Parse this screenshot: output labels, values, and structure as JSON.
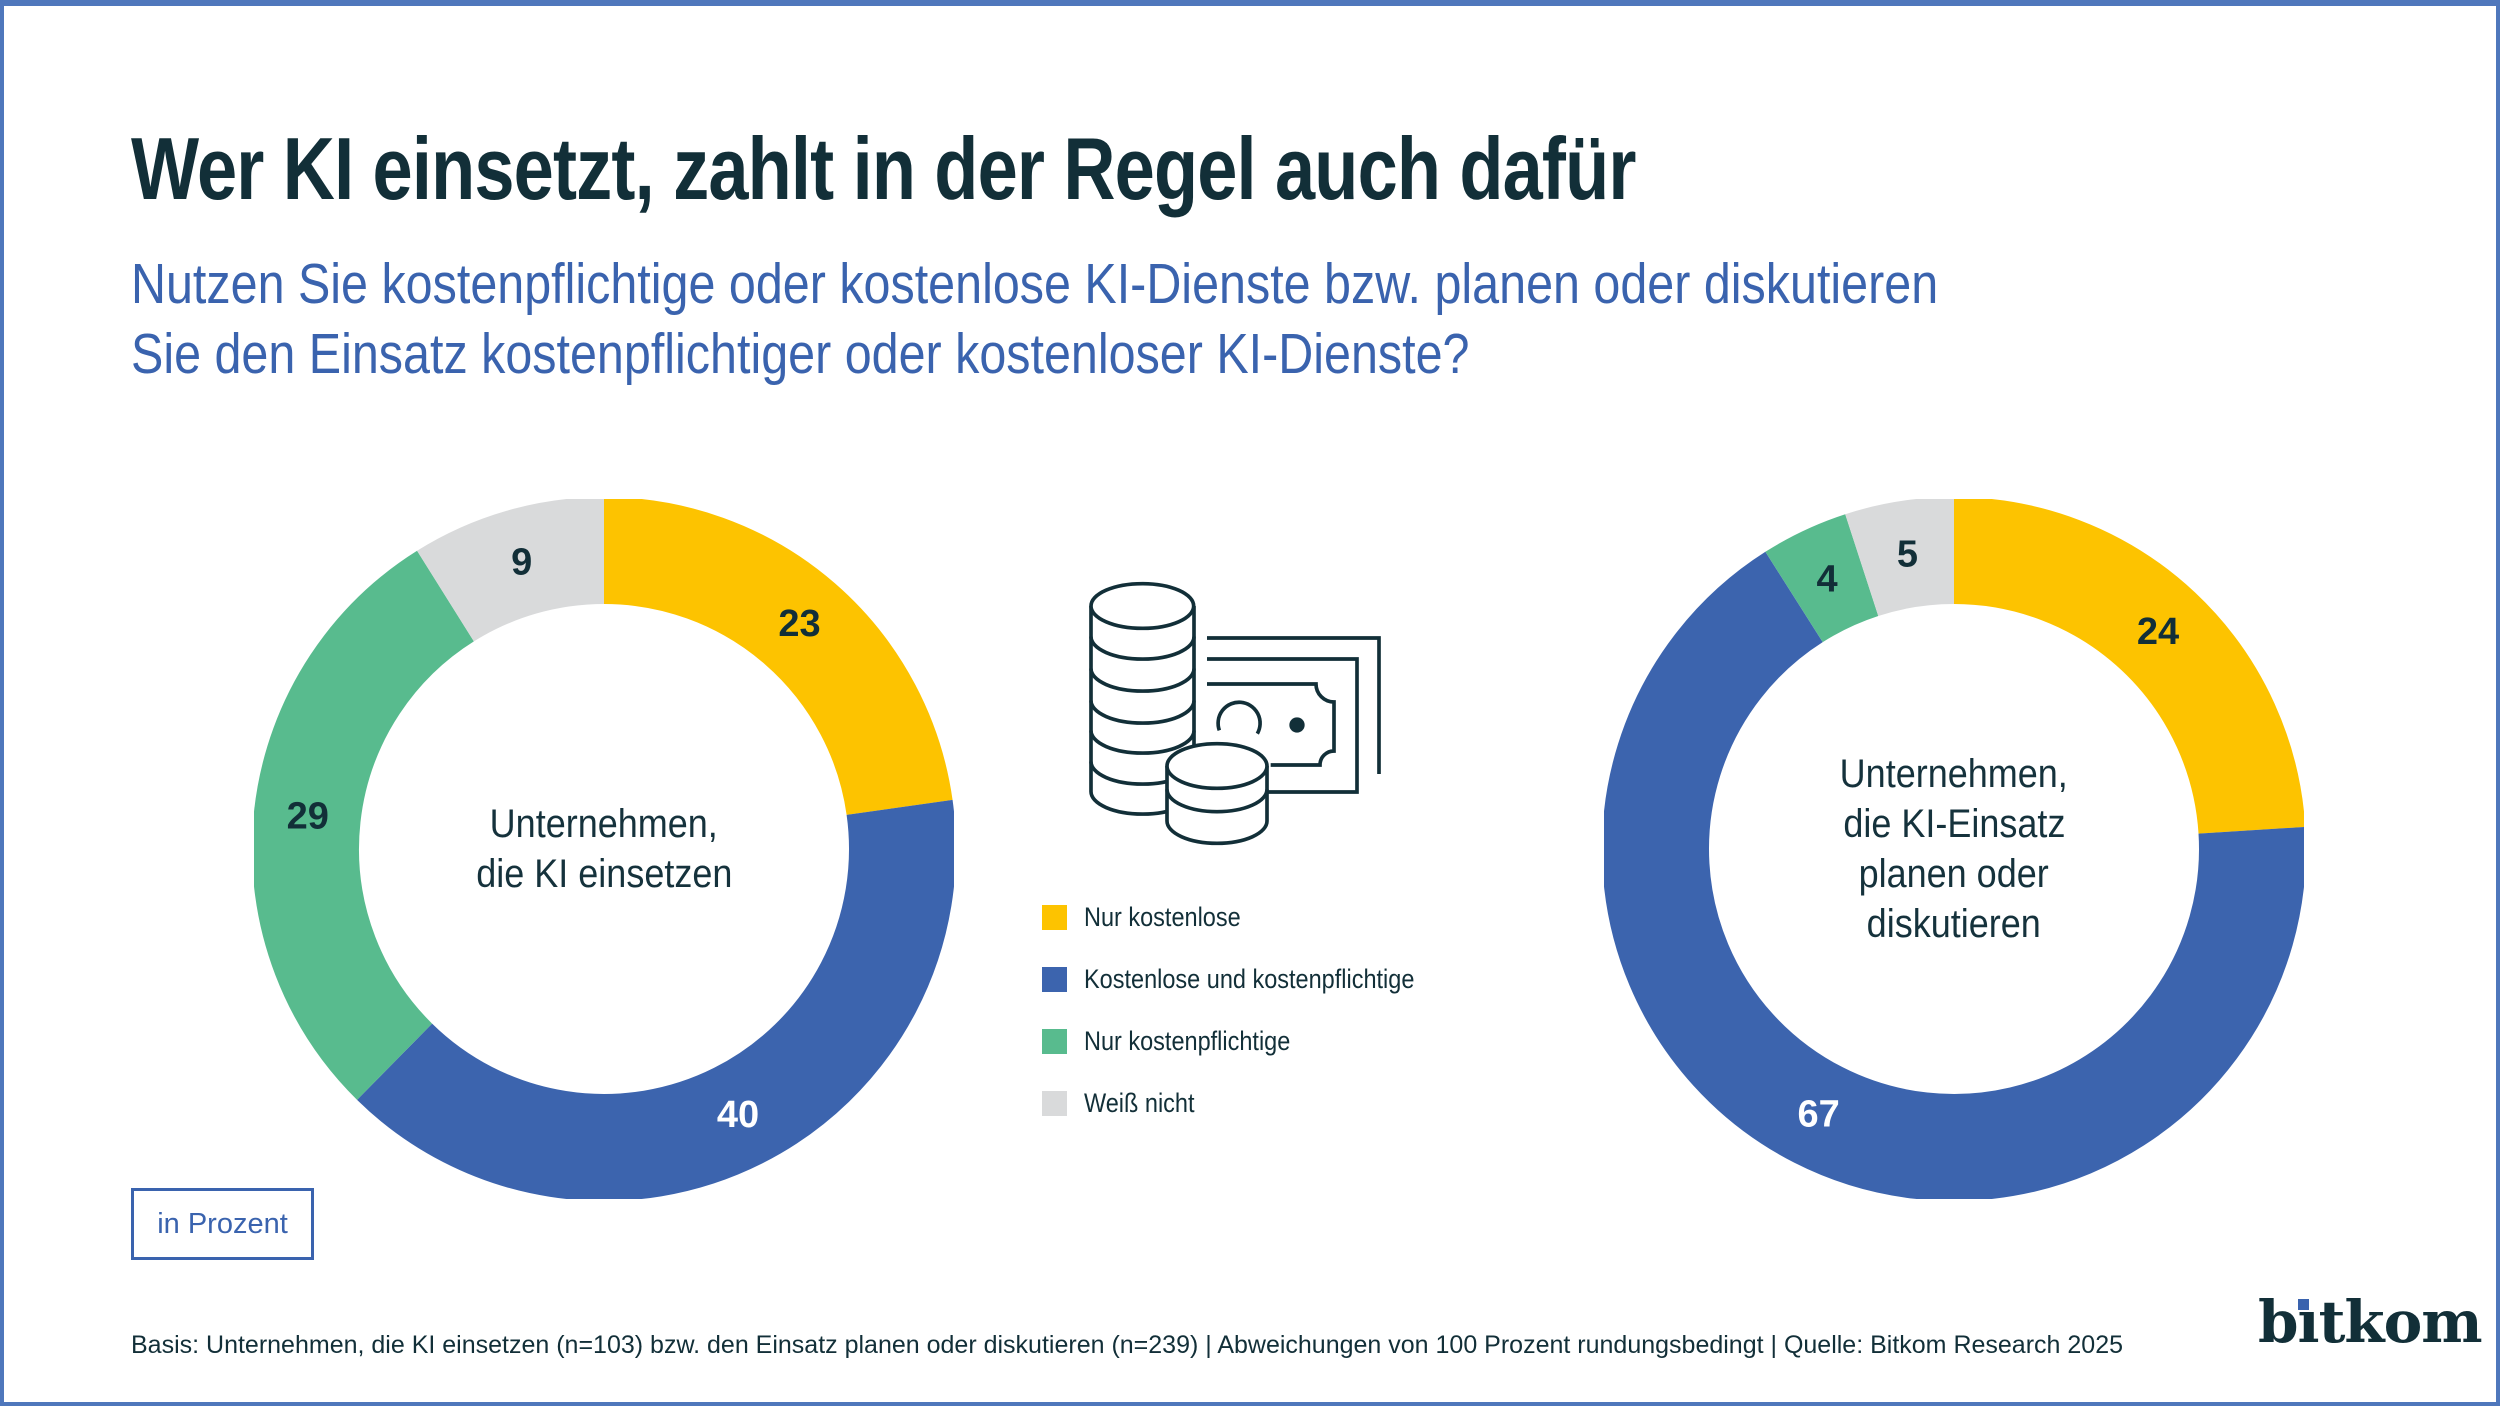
{
  "page": {
    "title": "Wer KI einsetzt, zahlt in der Regel auch dafür",
    "subtitle_lines": [
      "Nutzen Sie kostenpflichtige oder kostenlose KI-Dienste bzw. planen oder diskutieren",
      "Sie den Einsatz kostenpflichtiger oder kostenloser KI-Dienste?"
    ],
    "unit_box_label": "in Prozent",
    "footer": "Basis: Unternehmen, die KI einsetzen (n=103) bzw. den Einsatz planen oder diskutieren (n=239) | Abweichungen von 100 Prozent rundungsbedingt | Quelle: Bitkom Research 2025",
    "logo_text": "bitkom"
  },
  "colors": {
    "accent_dark": "#122F38",
    "subtitle_blue": "#3A63AE",
    "border_blue": "#4F77BC",
    "yellow": "#FDC300",
    "blue": "#3C64AE",
    "green": "#58BB8E",
    "gray": "#D9DADB"
  },
  "icons": {
    "center_illustration": "coins-and-banknote"
  },
  "legend": {
    "items": [
      {
        "label": "Nur kostenlose",
        "color": "#FDC300",
        "value_label_color": "#122F38"
      },
      {
        "label": "Kostenlose und kostenpflichtige",
        "color": "#3C64AE",
        "value_label_color": "#FFFFFF"
      },
      {
        "label": "Nur kostenpflichtige",
        "color": "#58BB8E",
        "value_label_color": "#122F38"
      },
      {
        "label": "Weiß nicht",
        "color": "#D9DADB",
        "value_label_color": "#122F38"
      }
    ]
  },
  "chart_data": [
    {
      "type": "pie",
      "subtype": "donut",
      "center_label_lines": [
        "Unternehmen,",
        "die KI einsetzen"
      ],
      "categories": [
        "Nur kostenlose",
        "Kostenlose und kostenpflichtige",
        "Nur kostenpflichtige",
        "Weiß nicht"
      ],
      "values": [
        23,
        40,
        29,
        9
      ],
      "unit": "Prozent",
      "start_angle_deg": 0,
      "direction": "clockwise"
    },
    {
      "type": "pie",
      "subtype": "donut",
      "center_label_lines": [
        "Unternehmen,",
        "die KI-Einsatz",
        "planen oder",
        "diskutieren"
      ],
      "categories": [
        "Nur kostenlose",
        "Kostenlose und kostenpflichtige",
        "Nur kostenpflichtige",
        "Weiß nicht"
      ],
      "values": [
        24,
        67,
        4,
        5
      ],
      "unit": "Prozent",
      "start_angle_deg": 0,
      "direction": "clockwise"
    }
  ]
}
